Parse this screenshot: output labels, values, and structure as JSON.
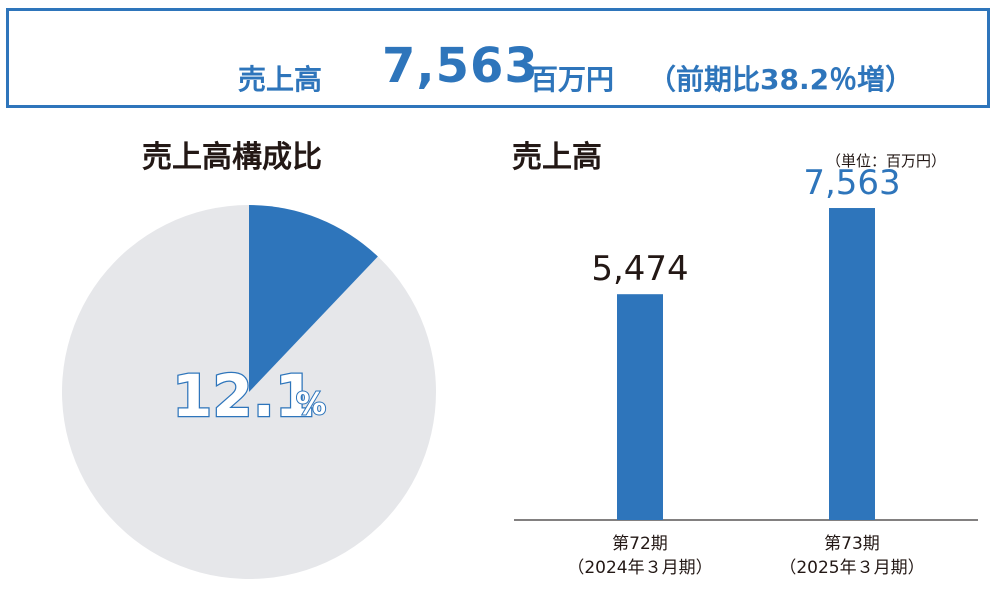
{
  "banner": {
    "label": "売上高",
    "value": "7,563",
    "unit": "百万円",
    "growth": "（前期比38.2％増）"
  },
  "composition": {
    "title": "売上高構成比",
    "percent_label": "12.1",
    "percent_sign": "%"
  },
  "sales": {
    "title": "売上高",
    "unit_note": "（単位：百万円）"
  },
  "colors": {
    "accent": "#2e75bb",
    "pie_rest": "#e6e7ea",
    "text": "#231815"
  },
  "chart_data": [
    {
      "type": "pie",
      "labels": [
        "",
        ""
      ],
      "values": [
        12.1,
        87.9
      ],
      "data_labels": [
        "12.1%",
        ""
      ],
      "title": "売上高構成比"
    },
    {
      "type": "bar",
      "categories": [
        "第72期（2024年３月期）",
        "第73期（2025年３月期）"
      ],
      "category_lines": [
        [
          "第72期",
          "（2024年３月期）"
        ],
        [
          "第73期",
          "（2025年３月期）"
        ]
      ],
      "values": [
        5474,
        7563
      ],
      "value_labels": [
        "5,474",
        "7,563"
      ],
      "title": "売上高",
      "unit": "（単位：百万円）",
      "ylim": [
        0,
        8000
      ]
    }
  ]
}
